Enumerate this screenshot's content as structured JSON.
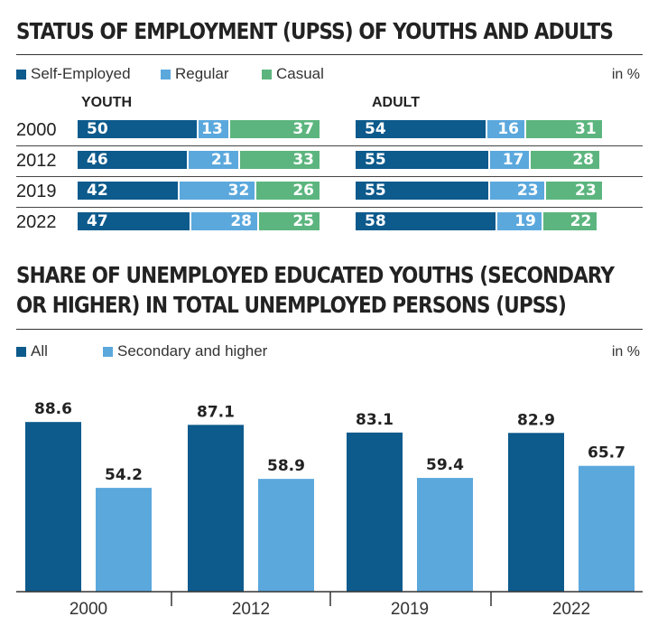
{
  "colors": {
    "self_employed": "#0d5a8c",
    "regular": "#5ba8dd",
    "casual": "#5cb57e",
    "all": "#0d5a8c",
    "secondary": "#5ba8dd"
  },
  "section1": {
    "title": "STATUS OF EMPLOYMENT (UPSS) OF YOUTHS AND ADULTS",
    "unit": "in %",
    "legend": [
      "Self-Employed",
      "Regular",
      "Casual"
    ]
  },
  "section2": {
    "title_line1": "SHARE OF UNEMPLOYED EDUCATED YOUTHS (SECONDARY",
    "title_line2": "OR HIGHER) IN TOTAL UNEMPLOYED PERSONS (UPSS)",
    "unit": "in %",
    "legend": [
      "All",
      "Secondary and higher"
    ]
  },
  "chart_data": [
    {
      "type": "bar",
      "stacked": true,
      "orientation": "horizontal",
      "group": "YOUTH",
      "categories": [
        "2000",
        "2012",
        "2019",
        "2022"
      ],
      "series": [
        {
          "name": "Self-Employed",
          "values": [
            50,
            46,
            42,
            47
          ]
        },
        {
          "name": "Regular",
          "values": [
            13,
            21,
            32,
            28
          ]
        },
        {
          "name": "Casual",
          "values": [
            37,
            33,
            26,
            25
          ]
        }
      ]
    },
    {
      "type": "bar",
      "stacked": true,
      "orientation": "horizontal",
      "group": "ADULT",
      "categories": [
        "2000",
        "2012",
        "2019",
        "2022"
      ],
      "series": [
        {
          "name": "Self-Employed",
          "values": [
            54,
            55,
            55,
            58
          ]
        },
        {
          "name": "Regular",
          "values": [
            16,
            17,
            23,
            19
          ]
        },
        {
          "name": "Casual",
          "values": [
            31,
            28,
            23,
            22
          ]
        }
      ]
    },
    {
      "type": "bar",
      "categories": [
        "2000",
        "2012",
        "2019",
        "2022"
      ],
      "series": [
        {
          "name": "All",
          "values": [
            88.6,
            87.1,
            83.1,
            82.9
          ]
        },
        {
          "name": "Secondary and higher",
          "values": [
            54.2,
            58.9,
            59.4,
            65.7
          ]
        }
      ],
      "ylim": [
        0,
        100
      ]
    }
  ]
}
